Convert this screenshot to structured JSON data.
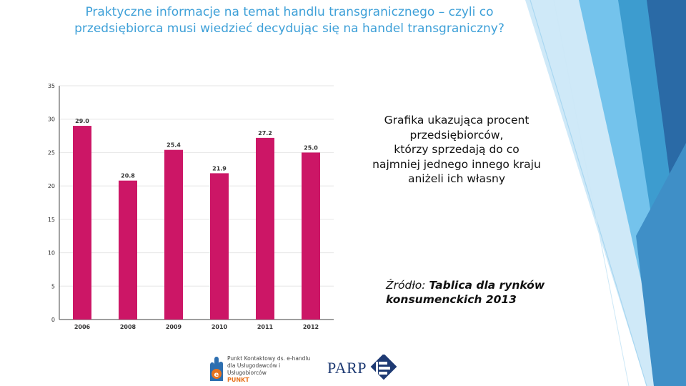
{
  "slide": {
    "title_lines": [
      "Praktyczne informacje na temat handlu transgranicznego – czyli co",
      "przedsiębiorca musi wiedzieć decydując się na handel transgraniczny?"
    ],
    "description_lines": [
      "Grafika ukazująca procent",
      "przedsiębiorców,",
      "którzy sprzedają do co",
      "najmniej jednego innego kraju",
      "aniżeli ich własny"
    ],
    "source": {
      "prefix": "Źródło: ",
      "publication": "Tablica dla rynków konsumenckich 2013"
    },
    "logos": {
      "punkt": {
        "lines": [
          "Punkt Kontaktowy ds. e-handlu",
          "dla Usługodawców i Usługobiorców"
        ],
        "brand": "PUNKT"
      },
      "parp": {
        "word": "PARP"
      }
    },
    "colors": {
      "title": "#3ea0d8",
      "bar": "#cc1666",
      "accent_blue": "#2a6aa6"
    }
  },
  "chart_data": {
    "type": "bar",
    "categories": [
      "2006",
      "2008",
      "2009",
      "2010",
      "2011",
      "2012"
    ],
    "values": [
      29.0,
      20.8,
      25.4,
      21.9,
      27.2,
      25.0
    ],
    "data_labels": [
      "29.0",
      "20.8",
      "25.4",
      "21.9",
      "27.2",
      "25.0"
    ],
    "yticks": [
      0,
      5,
      10,
      15,
      20,
      25,
      30,
      35
    ],
    "ylim": [
      0,
      35
    ],
    "title": "",
    "xlabel": "",
    "ylabel": "",
    "grid": "horizontal",
    "bar_color": "#cc1666"
  }
}
